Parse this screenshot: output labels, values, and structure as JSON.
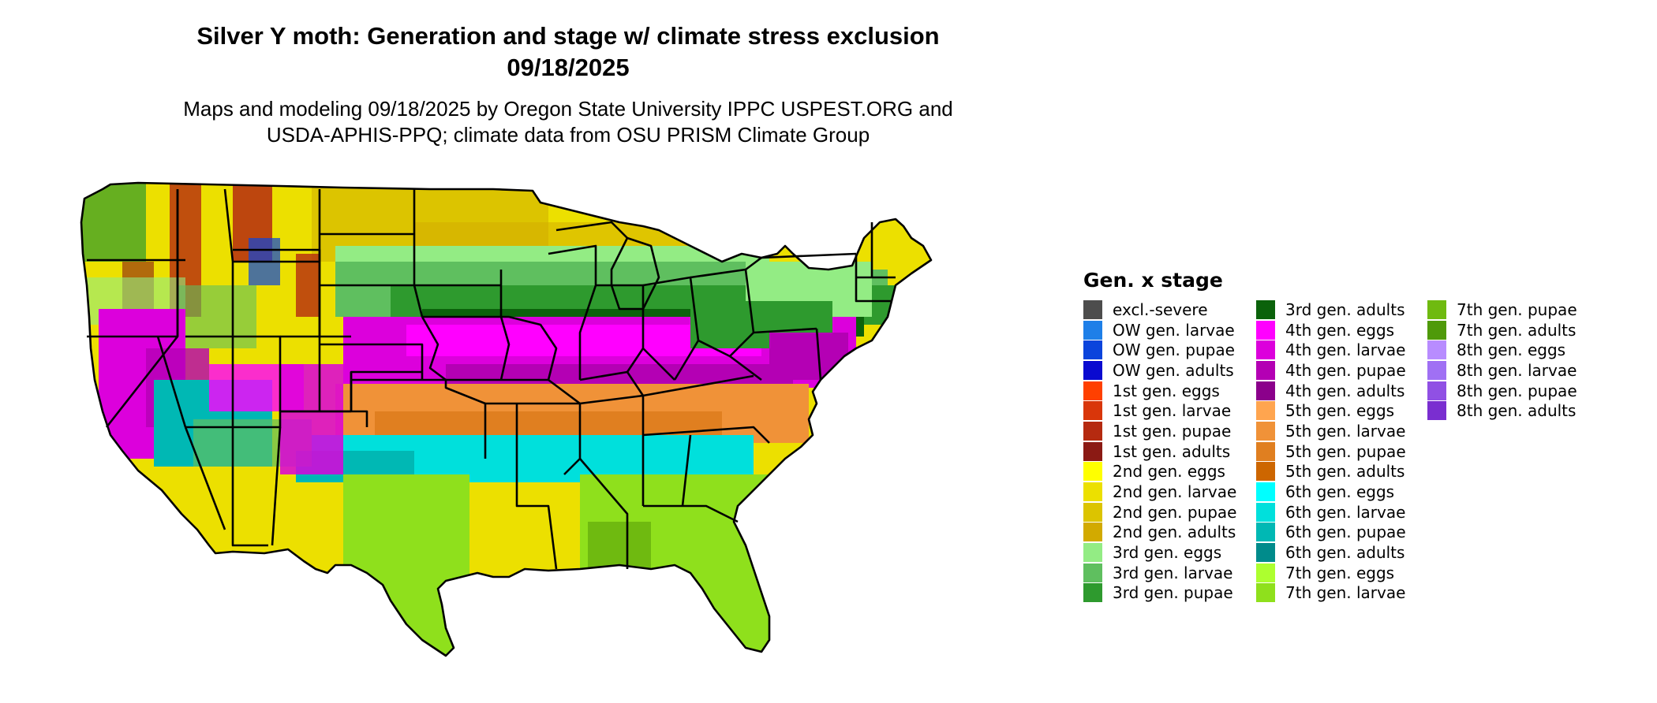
{
  "title": {
    "line1": "Silver Y moth: Generation and stage w/ climate stress exclusion",
    "line2": "09/18/2025"
  },
  "subtitle": {
    "line1": "Maps and modeling 09/18/2025 by Oregon State University IPPC USPEST.ORG and",
    "line2": "USDA-APHIS-PPQ; climate data from OSU PRISM Climate Group"
  },
  "legend": {
    "title": "Gen. x stage",
    "columns": [
      [
        {
          "label": "excl.-severe",
          "color": "#4d4d4d"
        },
        {
          "label": "OW gen. larvae",
          "color": "#1e7fe8"
        },
        {
          "label": "OW gen. pupae",
          "color": "#0b44dc"
        },
        {
          "label": "OW gen. adults",
          "color": "#0a0ad0"
        },
        {
          "label": "1st gen. eggs",
          "color": "#ff4000"
        },
        {
          "label": "1st gen. larvae",
          "color": "#d9360a"
        },
        {
          "label": "1st gen. pupae",
          "color": "#b52a10"
        },
        {
          "label": "1st gen. adults",
          "color": "#8b1a14"
        },
        {
          "label": "2nd gen. eggs",
          "color": "#ffff00"
        },
        {
          "label": "2nd gen. larvae",
          "color": "#ece000"
        },
        {
          "label": "2nd gen. pupae",
          "color": "#dcc400"
        },
        {
          "label": "2nd gen. adults",
          "color": "#d2aa00"
        },
        {
          "label": "3rd gen. eggs",
          "color": "#93ec84"
        },
        {
          "label": "3rd gen. larvae",
          "color": "#5fbf5f"
        },
        {
          "label": "3rd gen. pupae",
          "color": "#2e9a2e"
        }
      ],
      [
        {
          "label": "3rd gen. adults",
          "color": "#0b620b"
        },
        {
          "label": "4th gen. eggs",
          "color": "#ff00ff"
        },
        {
          "label": "4th gen. larvae",
          "color": "#dc00dc"
        },
        {
          "label": "4th gen. pupae",
          "color": "#b400b4"
        },
        {
          "label": "4th gen. adults",
          "color": "#8b008b"
        },
        {
          "label": "5th gen. eggs",
          "color": "#ffa54f"
        },
        {
          "label": "5th gen. larvae",
          "color": "#f09238"
        },
        {
          "label": "5th gen. pupae",
          "color": "#e07f20"
        },
        {
          "label": "5th gen. adults",
          "color": "#cd6600"
        },
        {
          "label": "6th gen. eggs",
          "color": "#00ffff"
        },
        {
          "label": "6th gen. larvae",
          "color": "#00e0dc"
        },
        {
          "label": "6th gen. pupae",
          "color": "#00b8b4"
        },
        {
          "label": "6th gen. adults",
          "color": "#008b8b"
        },
        {
          "label": "7th gen. eggs",
          "color": "#adff2f"
        },
        {
          "label": "7th gen. larvae",
          "color": "#8fe01c"
        }
      ],
      [
        {
          "label": "7th gen. pupae",
          "color": "#6fba10"
        },
        {
          "label": "7th gen. adults",
          "color": "#4f9a0a"
        },
        {
          "label": "8th gen. eggs",
          "color": "#b88cff"
        },
        {
          "label": "8th gen. larvae",
          "color": "#a070f4"
        },
        {
          "label": "8th gen. pupae",
          "color": "#9050e4"
        },
        {
          "label": "8th gen. adults",
          "color": "#7a2ed0"
        }
      ]
    ]
  }
}
